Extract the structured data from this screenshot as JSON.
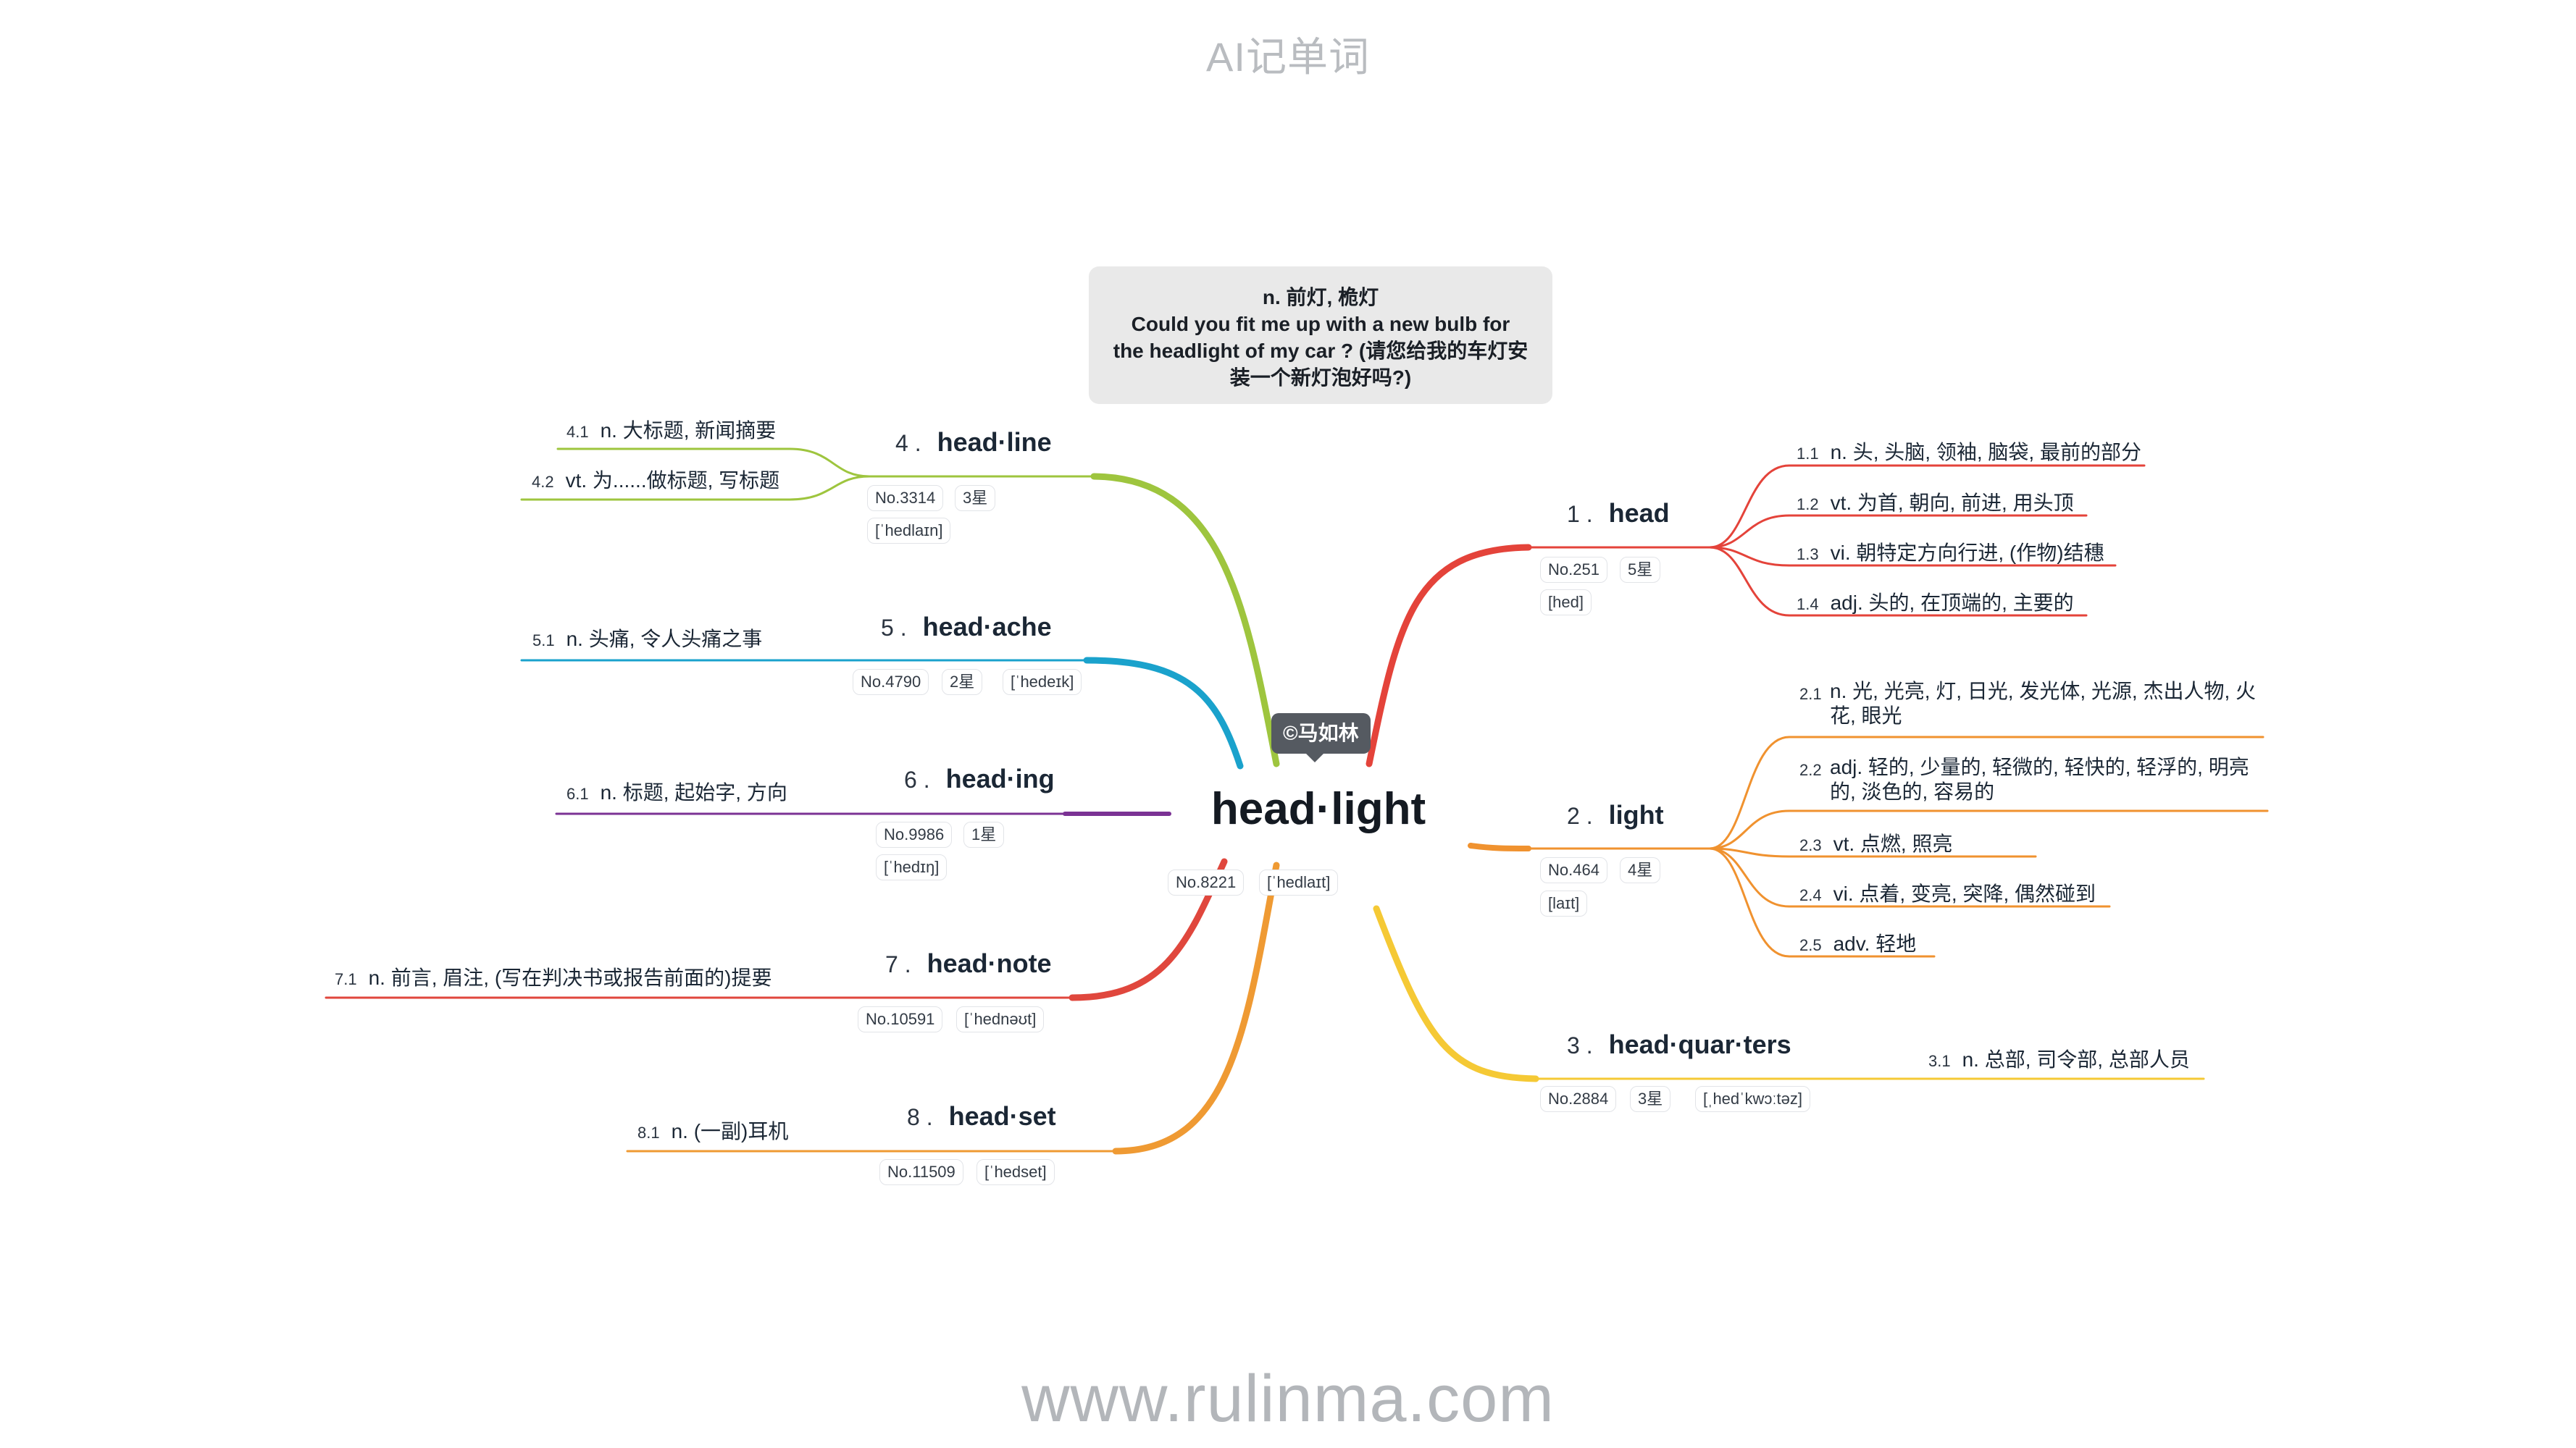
{
  "header": "AI记单词",
  "footer": "www.rulinma.com",
  "central": {
    "word": "head·light",
    "number": "No.8221",
    "phonetic": "[ˈhedlaɪt]",
    "definition_lines": [
      "n. 前灯, 桅灯",
      "Could you fit me up with a new bulb for",
      "the headlight of my car ? (请您给我的车灯安",
      "装一个新灯泡好吗?)"
    ],
    "author": "©马如林"
  },
  "colors": {
    "red": "#e4433a",
    "orange": "#f0922f",
    "yellow": "#f5c935",
    "green": "#9ec53e",
    "blue": "#1aa2cc",
    "purple": "#7b3294",
    "red2": "#e0473d",
    "orange2": "#ef9a33"
  },
  "branches": [
    {
      "index": "1 .",
      "word": "head",
      "number": "No.251",
      "stars": "5星",
      "phonetic": "[hed]",
      "definitions": [
        {
          "idx": "1.1",
          "text": "n. 头, 头脑, 领袖, 脑袋, 最前的部分"
        },
        {
          "idx": "1.2",
          "text": "vt. 为首, 朝向, 前进, 用头顶"
        },
        {
          "idx": "1.3",
          "text": "vi. 朝特定方向行进, (作物)结穗"
        },
        {
          "idx": "1.4",
          "text": "adj. 头的, 在顶端的, 主要的"
        }
      ]
    },
    {
      "index": "2 .",
      "word": "light",
      "number": "No.464",
      "stars": "4星",
      "phonetic": "[laɪt]",
      "definitions": [
        {
          "idx": "2.1",
          "text": "n. 光, 光亮, 灯, 日光, 发光体, 光源, 杰出人物, 火花, 眼光"
        },
        {
          "idx": "2.2",
          "text": "adj. 轻的, 少量的, 轻微的, 轻快的, 轻浮的, 明亮的, 淡色的, 容易的"
        },
        {
          "idx": "2.3",
          "text": "vt. 点燃, 照亮"
        },
        {
          "idx": "2.4",
          "text": "vi. 点着, 变亮, 突降, 偶然碰到"
        },
        {
          "idx": "2.5",
          "text": "adv. 轻地"
        }
      ]
    },
    {
      "index": "3 .",
      "word": "head·quar·ters",
      "number": "No.2884",
      "stars": "3星",
      "phonetic": "[ˌhedˈkwɔːtəz]",
      "definitions": [
        {
          "idx": "3.1",
          "text": "n. 总部, 司令部, 总部人员"
        }
      ]
    },
    {
      "index": "4 .",
      "word": "head·line",
      "number": "No.3314",
      "stars": "3星",
      "phonetic": "[ˈhedlaɪn]",
      "definitions": [
        {
          "idx": "4.1",
          "text": "n. 大标题, 新闻摘要"
        },
        {
          "idx": "4.2",
          "text": "vt. 为......做标题, 写标题"
        }
      ]
    },
    {
      "index": "5 .",
      "word": "head·ache",
      "number": "No.4790",
      "stars": "2星",
      "phonetic": "[ˈhedeɪk]",
      "definitions": [
        {
          "idx": "5.1",
          "text": "n. 头痛, 令人头痛之事"
        }
      ]
    },
    {
      "index": "6 .",
      "word": "head·ing",
      "number": "No.9986",
      "stars": "1星",
      "phonetic": "[ˈhedɪŋ]",
      "definitions": [
        {
          "idx": "6.1",
          "text": "n. 标题, 起始字, 方向"
        }
      ]
    },
    {
      "index": "7 .",
      "word": "head·note",
      "number": "No.10591",
      "phonetic": "[ˈhednəʊt]",
      "definitions": [
        {
          "idx": "7.1",
          "text": "n. 前言, 眉注, (写在判决书或报告前面的)提要"
        }
      ]
    },
    {
      "index": "8 .",
      "word": "head·set",
      "number": "No.11509",
      "phonetic": "[ˈhedset]",
      "definitions": [
        {
          "idx": "8.1",
          "text": "n. (一副)耳机"
        }
      ]
    }
  ]
}
